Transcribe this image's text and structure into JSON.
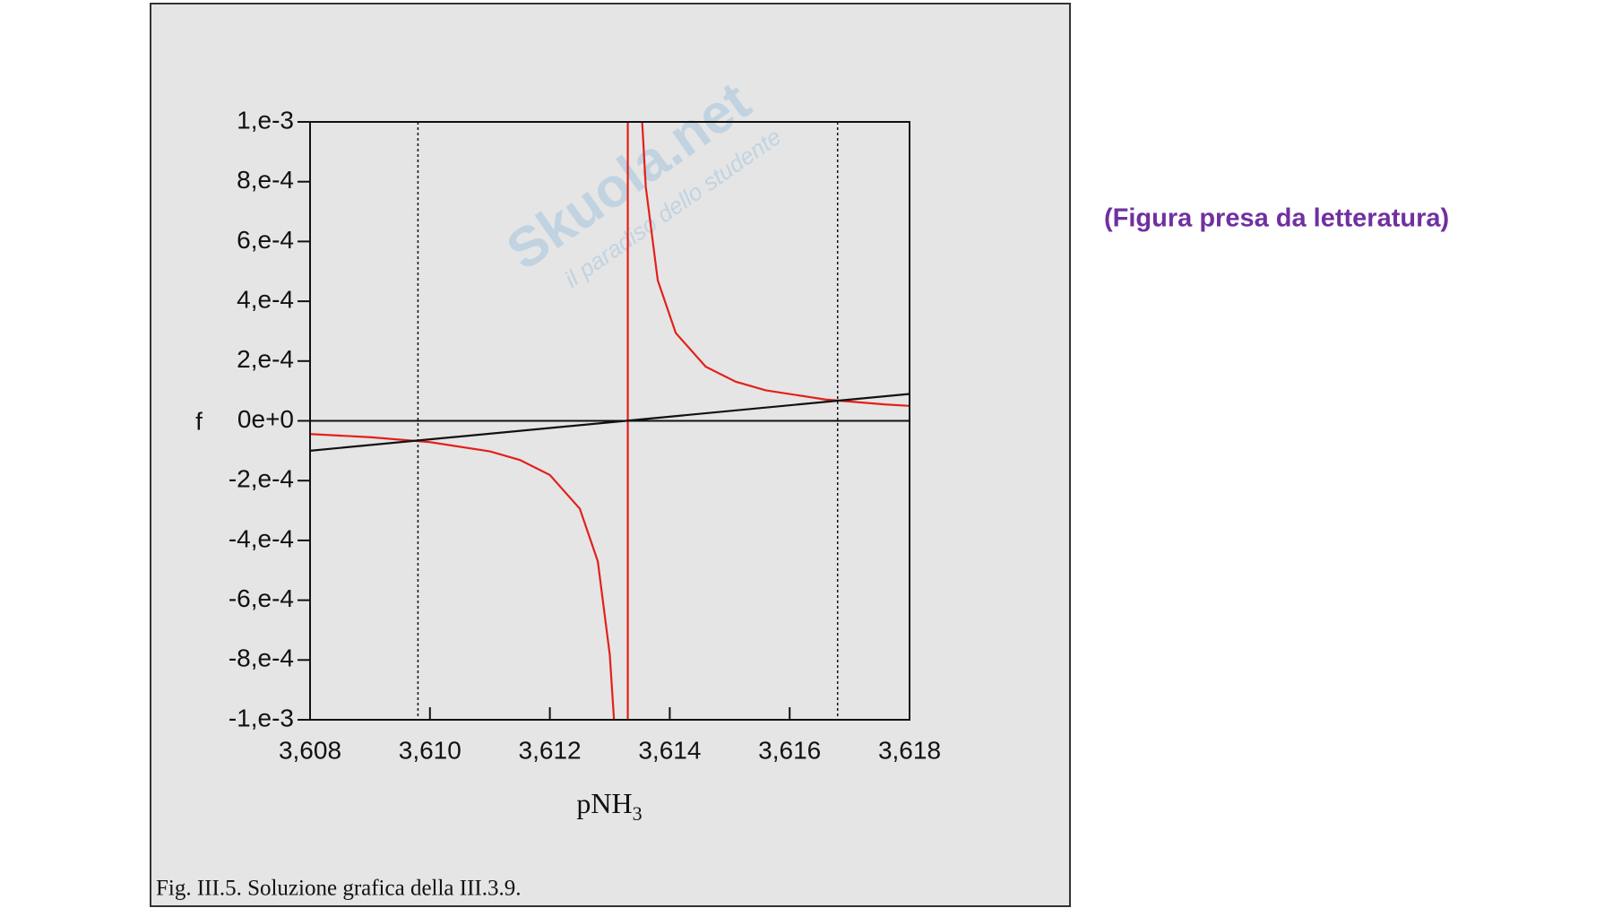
{
  "note_text": "(Figura presa da letteratura)",
  "watermark": "Skuola.net",
  "watermark_sub": "il paradiso dello studente",
  "chart_data": {
    "type": "line",
    "caption": "Fig. III.5. Soluzione grafica della III.3.9.",
    "ylabel": "f",
    "xlabel": "pNH",
    "xlabel_sub": "3",
    "xlim": [
      3.608,
      3.618
    ],
    "ylim": [
      -0.001,
      0.001
    ],
    "xticks": [
      {
        "value": 3.608,
        "label": "3,608"
      },
      {
        "value": 3.61,
        "label": "3,610"
      },
      {
        "value": 3.612,
        "label": "3,612"
      },
      {
        "value": 3.614,
        "label": "3,614"
      },
      {
        "value": 3.616,
        "label": "3,616"
      },
      {
        "value": 3.618,
        "label": "3,618"
      }
    ],
    "yticks": [
      {
        "value": -0.001,
        "label": "-1,e-3"
      },
      {
        "value": -0.0008,
        "label": "-8,e-4"
      },
      {
        "value": -0.0006,
        "label": "-6,e-4"
      },
      {
        "value": -0.0004,
        "label": "-4,e-4"
      },
      {
        "value": -0.0002,
        "label": "-2,e-4"
      },
      {
        "value": 0,
        "label": "0e+0"
      },
      {
        "value": 0.0002,
        "label": "2,e-4"
      },
      {
        "value": 0.0004,
        "label": "4,e-4"
      },
      {
        "value": 0.0006,
        "label": "6,e-4"
      },
      {
        "value": 0.0008,
        "label": "8,e-4"
      },
      {
        "value": 0.001,
        "label": "1,e-3"
      }
    ],
    "zero_line": true,
    "vlines": [
      3.6098,
      3.6168
    ],
    "series": [
      {
        "color": "#e3201b",
        "x": [
          3.608,
          3.609,
          3.61,
          3.611,
          3.6115,
          3.612,
          3.6125,
          3.6128,
          3.613,
          3.61307,
          null,
          3.61354,
          3.6136,
          3.6138,
          3.6141,
          3.6146,
          3.6151,
          3.6156,
          3.6166,
          3.6176,
          3.618
        ],
        "values": [
          -4.43e-05,
          -5.47e-05,
          -7.12e-05,
          -0.000102,
          -0.000131,
          -0.000181,
          -0.000294,
          -0.00047,
          -0.000783,
          -0.001,
          null,
          0.001,
          0.000783,
          0.00047,
          0.000294,
          0.000181,
          0.000131,
          0.000102,
          7.12e-05,
          5.47e-05,
          5e-05
        ]
      },
      {
        "color": "#e3201b",
        "x": [
          3.6133,
          3.6133
        ],
        "values": [
          -0.001,
          0.001
        ]
      },
      {
        "color": "#111111",
        "x": [
          3.608,
          3.618
        ],
        "values": [
          -0.0001,
          9e-05
        ]
      }
    ]
  }
}
